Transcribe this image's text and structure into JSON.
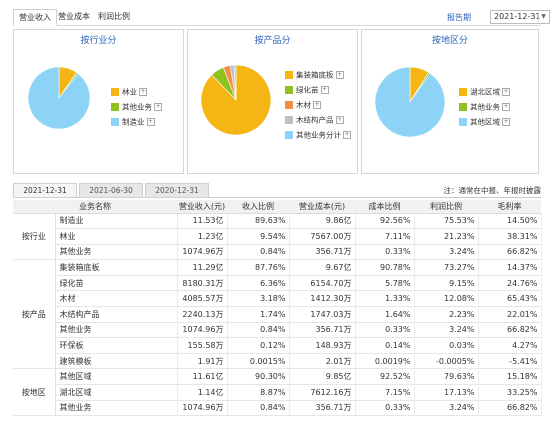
{
  "top_tabs": [
    "营业收入",
    "营业成本",
    "利润比例"
  ],
  "report_label": "报告期",
  "report_date": "2021-12-31",
  "colors": {
    "blue": "#8dd3f5",
    "yellow": "#f4b515",
    "green": "#8ec31f",
    "orange": "#f58e44",
    "lightblue": "#7fd2f6",
    "title_blue": "#2a62b8"
  },
  "panels": [
    {
      "title": "按行业分",
      "legend": [
        {
          "label": "林业",
          "color": "#f4b515"
        },
        {
          "label": "其他业务",
          "color": "#8ec31f"
        },
        {
          "label": "制造业",
          "color": "#8dd3f5"
        }
      ],
      "slices": [
        9.54,
        0.84,
        89.63
      ]
    },
    {
      "title": "按产品分",
      "legend": [
        {
          "label": "集装箱底板",
          "color": "#f4b515"
        },
        {
          "label": "绿化苗",
          "color": "#8ec31f"
        },
        {
          "label": "木材",
          "color": "#f58e44"
        },
        {
          "label": "木结构产品",
          "color": "#bfbfbf"
        },
        {
          "label": "其他业务分计",
          "color": "#8dd3f5"
        }
      ],
      "slices": [
        87.76,
        6.36,
        3.18,
        1.74,
        0.96
      ]
    },
    {
      "title": "按地区分",
      "legend": [
        {
          "label": "湖北区域",
          "color": "#f4b515"
        },
        {
          "label": "其他业务",
          "color": "#8ec31f"
        },
        {
          "label": "其他区域",
          "color": "#8dd3f5"
        }
      ],
      "slices": [
        8.87,
        0.84,
        90.3
      ]
    }
  ],
  "period_tabs": [
    "2021-12-31",
    "2021-06-30",
    "2020-12-31"
  ],
  "note": "注：通常在中报、年报时披露",
  "table": {
    "headers": [
      "业务名称",
      "营业收入(元)",
      "收入比例",
      "营业成本(元)",
      "成本比例",
      "利润比例",
      "毛利率"
    ],
    "groups": [
      {
        "name": "按行业",
        "rows": [
          [
            "制造业",
            "11.53亿",
            "89.63%",
            "9.86亿",
            "92.56%",
            "75.53%",
            "14.50%"
          ],
          [
            "林业",
            "1.23亿",
            "9.54%",
            "7567.00万",
            "7.11%",
            "21.23%",
            "38.31%"
          ],
          [
            "其他业务",
            "1074.96万",
            "0.84%",
            "356.71万",
            "0.33%",
            "3.24%",
            "66.82%"
          ]
        ]
      },
      {
        "name": "按产品",
        "rows": [
          [
            "集装箱底板",
            "11.29亿",
            "87.76%",
            "9.67亿",
            "90.78%",
            "73.27%",
            "14.37%"
          ],
          [
            "绿化苗",
            "8180.31万",
            "6.36%",
            "6154.70万",
            "5.78%",
            "9.15%",
            "24.76%"
          ],
          [
            "木材",
            "4085.57万",
            "3.18%",
            "1412.30万",
            "1.33%",
            "12.08%",
            "65.43%"
          ],
          [
            "木结构产品",
            "2240.13万",
            "1.74%",
            "1747.03万",
            "1.64%",
            "2.23%",
            "22.01%"
          ],
          [
            "其他业务",
            "1074.96万",
            "0.84%",
            "356.71万",
            "0.33%",
            "3.24%",
            "66.82%"
          ],
          [
            "环保板",
            "155.58万",
            "0.12%",
            "148.93万",
            "0.14%",
            "0.03%",
            "4.27%"
          ],
          [
            "建筑模板",
            "1.91万",
            "0.0015%",
            "2.01万",
            "0.0019%",
            "-0.0005%",
            "-5.41%"
          ]
        ]
      },
      {
        "name": "按地区",
        "rows": [
          [
            "其他区域",
            "11.61亿",
            "90.30%",
            "9.85亿",
            "92.52%",
            "79.63%",
            "15.18%"
          ],
          [
            "湖北区域",
            "1.14亿",
            "8.87%",
            "7612.16万",
            "7.15%",
            "17.13%",
            "33.25%"
          ],
          [
            "其他业务",
            "1074.96万",
            "0.84%",
            "356.71万",
            "0.33%",
            "3.24%",
            "66.82%"
          ]
        ]
      }
    ]
  }
}
